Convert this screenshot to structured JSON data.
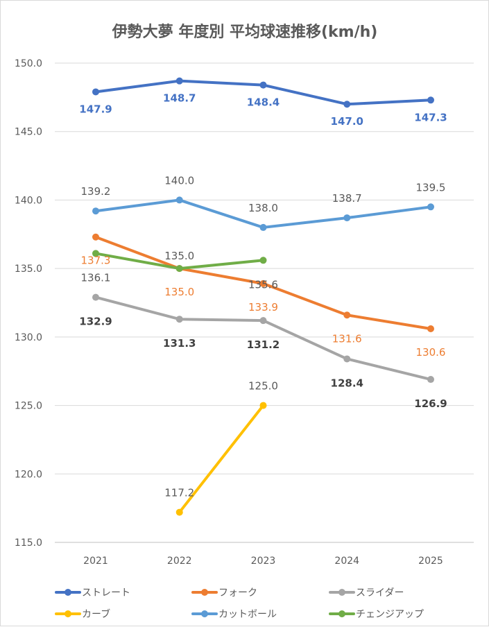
{
  "chart_data": {
    "type": "line",
    "title": "伊勢大夢 年度別 平均球速推移(km/h)",
    "categories": [
      "2021",
      "2022",
      "2023",
      "2024",
      "2025"
    ],
    "ylim": [
      115,
      150
    ],
    "yticks": [
      "115.0",
      "120.0",
      "125.0",
      "130.0",
      "135.0",
      "140.0",
      "145.0",
      "150.0"
    ],
    "grid": true,
    "legend_position": "bottom",
    "series": [
      {
        "name": "ストレート",
        "color": "#4472C4",
        "values": [
          147.9,
          148.7,
          148.4,
          147.0,
          147.3
        ],
        "labels": [
          "147.9",
          "148.7",
          "148.4",
          "147.0",
          "147.3"
        ]
      },
      {
        "name": "フォーク",
        "color": "#ED7D31",
        "values": [
          137.3,
          135.0,
          133.9,
          131.6,
          130.6
        ],
        "labels": [
          "137.3",
          "135.0",
          "133.9",
          "131.6",
          "130.6"
        ]
      },
      {
        "name": "スライダー",
        "color": "#A5A5A5",
        "values": [
          132.9,
          131.3,
          131.2,
          128.4,
          126.9
        ],
        "labels": [
          "132.9",
          "131.3",
          "131.2",
          "128.4",
          "126.9"
        ]
      },
      {
        "name": "カーブ",
        "color": "#FFC000",
        "values": [
          null,
          117.2,
          125.0,
          null,
          null
        ],
        "labels": [
          null,
          "117.2",
          "125.0",
          null,
          null
        ]
      },
      {
        "name": "カットボール",
        "color": "#5B9BD5",
        "values": [
          139.2,
          140.0,
          138.0,
          138.7,
          139.5
        ],
        "labels": [
          "139.2",
          "140.0",
          "138.0",
          "138.7",
          "139.5"
        ]
      },
      {
        "name": "チェンジアップ",
        "color": "#70AD47",
        "values": [
          136.1,
          135.0,
          135.6,
          null,
          null
        ],
        "labels": [
          "136.1",
          "135.0",
          "135.6",
          null,
          null
        ]
      }
    ]
  }
}
